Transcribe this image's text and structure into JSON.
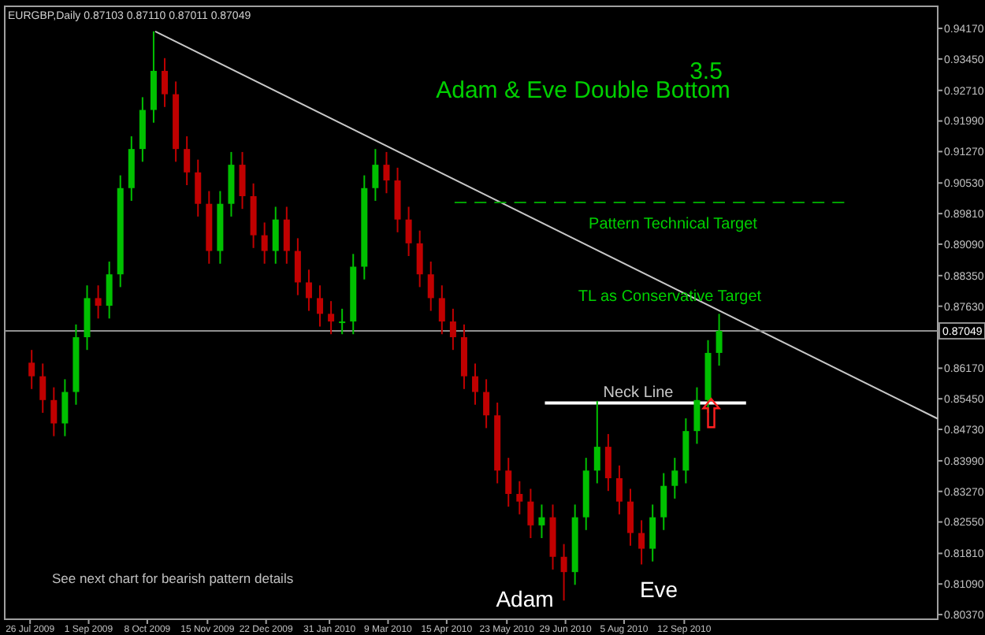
{
  "chart_data": {
    "type": "candlestick",
    "title": "EURGBP,Daily 0.87103 0.87110 0.87011 0.87049",
    "subtitle": "Adam & Eve Double Bottom",
    "x": [
      "2009-07-27",
      "2009-08-03",
      "2009-08-10",
      "2009-08-17",
      "2009-08-24",
      "2009-08-31",
      "2009-09-07",
      "2009-09-14",
      "2009-09-21",
      "2009-09-28",
      "2009-10-05",
      "2009-10-12",
      "2009-10-19",
      "2009-10-26",
      "2009-11-02",
      "2009-11-09",
      "2009-11-16",
      "2009-11-23",
      "2009-11-30",
      "2009-12-07",
      "2009-12-14",
      "2009-12-21",
      "2009-12-28",
      "2010-01-04",
      "2010-01-11",
      "2010-01-18",
      "2010-01-25",
      "2010-02-01",
      "2010-02-08",
      "2010-02-15",
      "2010-02-22",
      "2010-03-01",
      "2010-03-08",
      "2010-03-15",
      "2010-03-22",
      "2010-03-29",
      "2010-04-05",
      "2010-04-12",
      "2010-04-19",
      "2010-04-26",
      "2010-05-03",
      "2010-05-10",
      "2010-05-17",
      "2010-05-24",
      "2010-05-31",
      "2010-06-07",
      "2010-06-14",
      "2010-06-21",
      "2010-06-28",
      "2010-07-05",
      "2010-07-12",
      "2010-07-19",
      "2010-07-26",
      "2010-08-02",
      "2010-08-09",
      "2010-08-16",
      "2010-08-23",
      "2010-08-30",
      "2010-09-06",
      "2010-09-13",
      "2010-09-20",
      "2010-09-27",
      "2010-10-04"
    ],
    "ohlc": [
      [
        0.863,
        0.866,
        0.8568,
        0.8598
      ],
      [
        0.8598,
        0.8628,
        0.8512,
        0.8542
      ],
      [
        0.8542,
        0.8572,
        0.8457,
        0.8487
      ],
      [
        0.8487,
        0.8591,
        0.8457,
        0.8561
      ],
      [
        0.8561,
        0.872,
        0.8531,
        0.869
      ],
      [
        0.869,
        0.8812,
        0.866,
        0.8782
      ],
      [
        0.8782,
        0.8812,
        0.8734,
        0.8764
      ],
      [
        0.8764,
        0.8868,
        0.8734,
        0.8838
      ],
      [
        0.8838,
        0.9071,
        0.8808,
        0.9041
      ],
      [
        0.9041,
        0.9163,
        0.9011,
        0.9133
      ],
      [
        0.9133,
        0.9255,
        0.9103,
        0.9225
      ],
      [
        0.9225,
        0.941,
        0.9195,
        0.9317
      ],
      [
        0.9317,
        0.9347,
        0.9232,
        0.9262
      ],
      [
        0.9262,
        0.9292,
        0.9103,
        0.9133
      ],
      [
        0.9133,
        0.9163,
        0.9048,
        0.9078
      ],
      [
        0.9078,
        0.9108,
        0.8974,
        0.9004
      ],
      [
        0.9004,
        0.9034,
        0.8863,
        0.8893
      ],
      [
        0.8893,
        0.9034,
        0.8863,
        0.9004
      ],
      [
        0.9004,
        0.9126,
        0.8974,
        0.9096
      ],
      [
        0.9096,
        0.9126,
        0.8992,
        0.9022
      ],
      [
        0.9022,
        0.9052,
        0.89,
        0.893
      ],
      [
        0.893,
        0.896,
        0.8863,
        0.8893
      ],
      [
        0.8893,
        0.8997,
        0.8863,
        0.8967
      ],
      [
        0.8967,
        0.8997,
        0.8863,
        0.8893
      ],
      [
        0.8893,
        0.8923,
        0.8789,
        0.8819
      ],
      [
        0.8819,
        0.8849,
        0.8752,
        0.8782
      ],
      [
        0.8782,
        0.8812,
        0.8715,
        0.8745
      ],
      [
        0.8745,
        0.8775,
        0.8697,
        0.8727
      ],
      [
        0.8727,
        0.8757,
        0.8697,
        0.8727
      ],
      [
        0.8727,
        0.8886,
        0.8697,
        0.8856
      ],
      [
        0.8856,
        0.9071,
        0.8826,
        0.9041
      ],
      [
        0.9041,
        0.9133,
        0.9011,
        0.9096
      ],
      [
        0.9096,
        0.9126,
        0.9029,
        0.9059
      ],
      [
        0.9059,
        0.9089,
        0.8937,
        0.8967
      ],
      [
        0.8967,
        0.8997,
        0.8881,
        0.8911
      ],
      [
        0.8911,
        0.8941,
        0.8808,
        0.8838
      ],
      [
        0.8838,
        0.8868,
        0.8752,
        0.8782
      ],
      [
        0.8782,
        0.8812,
        0.8697,
        0.8727
      ],
      [
        0.8727,
        0.8757,
        0.866,
        0.869
      ],
      [
        0.869,
        0.872,
        0.8568,
        0.8598
      ],
      [
        0.8598,
        0.8628,
        0.8531,
        0.8561
      ],
      [
        0.8561,
        0.8591,
        0.8476,
        0.8506
      ],
      [
        0.8506,
        0.8536,
        0.8346,
        0.8376
      ],
      [
        0.8376,
        0.8406,
        0.8291,
        0.8321
      ],
      [
        0.8321,
        0.8351,
        0.8273,
        0.8303
      ],
      [
        0.8303,
        0.8333,
        0.8217,
        0.8247
      ],
      [
        0.8247,
        0.8296,
        0.8217,
        0.8266
      ],
      [
        0.8266,
        0.8296,
        0.8143,
        0.8173
      ],
      [
        0.8173,
        0.8203,
        0.807,
        0.8137
      ],
      [
        0.8137,
        0.8296,
        0.8107,
        0.8266
      ],
      [
        0.8266,
        0.8406,
        0.8236,
        0.8376
      ],
      [
        0.8376,
        0.854,
        0.8346,
        0.8432
      ],
      [
        0.8432,
        0.8462,
        0.8328,
        0.8358
      ],
      [
        0.8358,
        0.8388,
        0.8273,
        0.8303
      ],
      [
        0.8303,
        0.8333,
        0.8199,
        0.8229
      ],
      [
        0.8229,
        0.8259,
        0.8155,
        0.8192
      ],
      [
        0.8192,
        0.8296,
        0.8162,
        0.8266
      ],
      [
        0.8266,
        0.837,
        0.8236,
        0.834
      ],
      [
        0.834,
        0.8406,
        0.831,
        0.8376
      ],
      [
        0.8376,
        0.8499,
        0.8346,
        0.8469
      ],
      [
        0.8469,
        0.8572,
        0.8439,
        0.8542
      ],
      [
        0.8542,
        0.8683,
        0.8512,
        0.8653
      ],
      [
        0.8653,
        0.8745,
        0.8623,
        0.8705
      ]
    ],
    "series": [
      {
        "type": "line",
        "x": [
          "2009-10-13",
          "2011-02-19"
        ],
        "values": [
          0.941,
          0.8498
        ],
        "color": "#c8c8c8",
        "line_style": "solid"
      },
      {
        "type": "line",
        "x": [
          "2010-06-16",
          "2010-10-21"
        ],
        "values": [
          0.8535,
          0.8535
        ],
        "color": "#ffffff",
        "line_style": "solid"
      },
      {
        "type": "line",
        "x": [
          "2010-04-20",
          "2010-12-22"
        ],
        "values": [
          0.9007,
          0.9007
        ],
        "color": "#00a000",
        "line_style": "dashed"
      }
    ],
    "ref_lines": [
      {
        "axis": "y",
        "value": 0.87049,
        "label": "0.87049",
        "color": "#909090"
      }
    ],
    "xlim": [
      "2009-07-10",
      "2011-02-19"
    ],
    "xticks": [
      {
        "value": "2009-07-26",
        "label": "26 Jul 2009"
      },
      {
        "value": "2009-09-01",
        "label": "1 Sep 2009"
      },
      {
        "value": "2009-10-08",
        "label": "8 Oct 2009"
      },
      {
        "value": "2009-11-15",
        "label": "15 Nov 2009"
      },
      {
        "value": "2009-12-22",
        "label": "22 Dec 2009"
      },
      {
        "value": "2010-01-31",
        "label": "31 Jan 2010"
      },
      {
        "value": "2010-03-09",
        "label": "9 Mar 2010"
      },
      {
        "value": "2010-04-15",
        "label": "15 Apr 2010"
      },
      {
        "value": "2010-05-23",
        "label": "23 May 2010"
      },
      {
        "value": "2010-06-29",
        "label": "29 Jun 2010"
      },
      {
        "value": "2010-08-05",
        "label": "5 Aug 2010"
      },
      {
        "value": "2010-09-12",
        "label": "12 Sep 2010"
      }
    ],
    "ylim": [
      0.8026,
      0.9469
    ],
    "yticks": [
      {
        "value": 0.9417,
        "label": "0.94170"
      },
      {
        "value": 0.9345,
        "label": "0.93450"
      },
      {
        "value": 0.9271,
        "label": "0.92710"
      },
      {
        "value": 0.9199,
        "label": "0.91990"
      },
      {
        "value": 0.9127,
        "label": "0.91270"
      },
      {
        "value": 0.9053,
        "label": "0.90530"
      },
      {
        "value": 0.8981,
        "label": "0.89810"
      },
      {
        "value": 0.8909,
        "label": "0.89090"
      },
      {
        "value": 0.8835,
        "label": "0.88350"
      },
      {
        "value": 0.8763,
        "label": "0.87630"
      },
      {
        "value": 0.8617,
        "label": "0.86170"
      },
      {
        "value": 0.8545,
        "label": "0.85450"
      },
      {
        "value": 0.8473,
        "label": "0.84730"
      },
      {
        "value": 0.8399,
        "label": "0.83990"
      },
      {
        "value": 0.8327,
        "label": "0.83270"
      },
      {
        "value": 0.8255,
        "label": "0.82550"
      },
      {
        "value": 0.8181,
        "label": "0.81810"
      },
      {
        "value": 0.8109,
        "label": "0.81090"
      },
      {
        "value": 0.8037,
        "label": "0.80370"
      }
    ],
    "annotations": [
      "3.5",
      "See next chart for bearish pattern details",
      "Pattern Technical Target",
      "TL as Conservative Target",
      "Neck Line",
      "Adam",
      "Eve"
    ],
    "grid": false
  }
}
